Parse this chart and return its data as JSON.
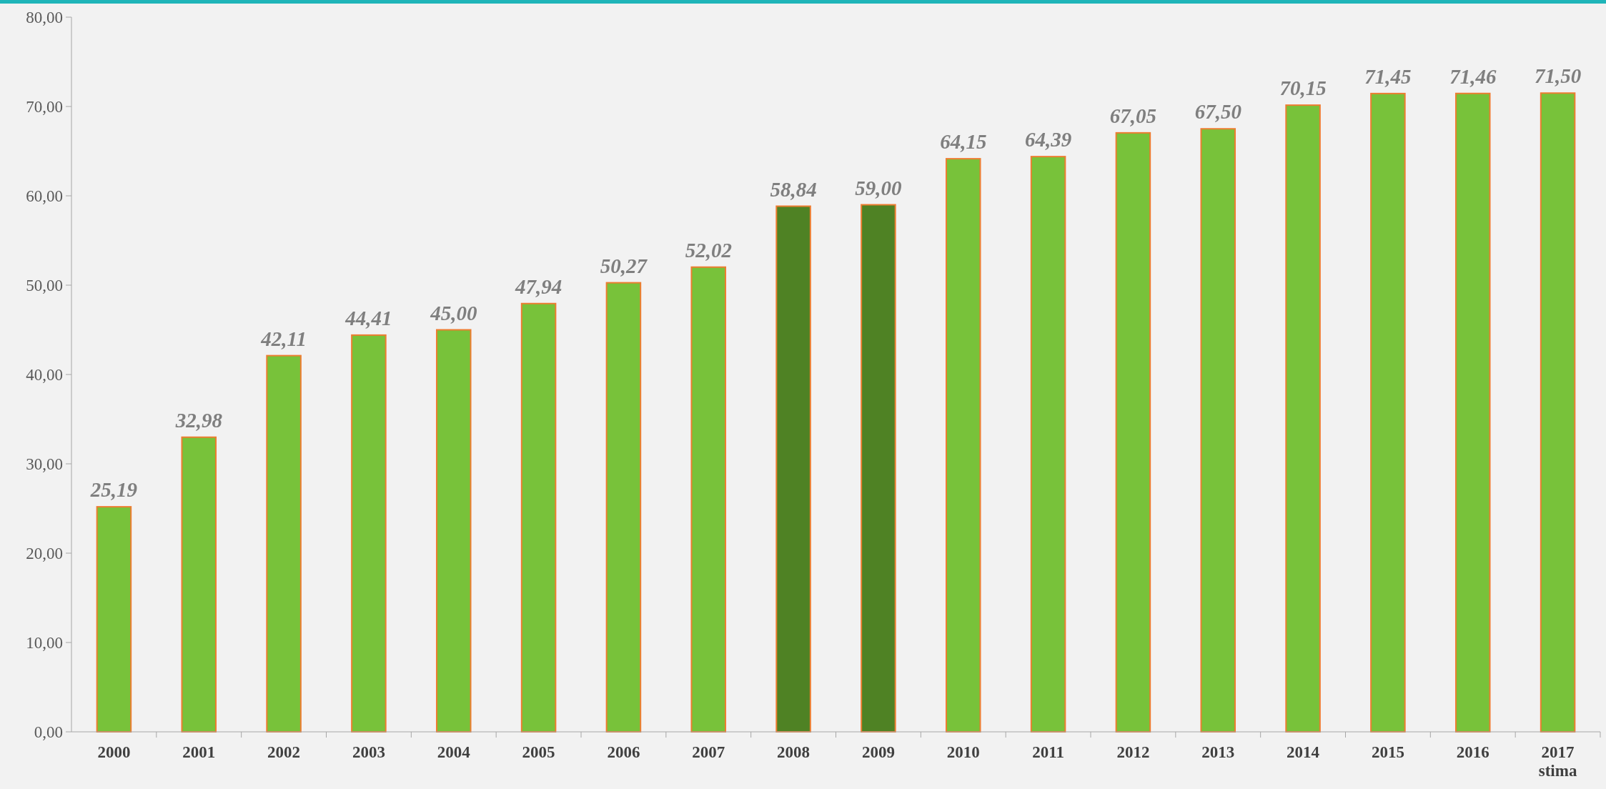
{
  "chart_data": {
    "type": "bar",
    "categories": [
      "2000",
      "2001",
      "2002",
      "2003",
      "2004",
      "2005",
      "2006",
      "2007",
      "2008",
      "2009",
      "2010",
      "2011",
      "2012",
      "2013",
      "2014",
      "2015",
      "2016",
      "2017\nstima"
    ],
    "values": [
      25.19,
      32.98,
      42.11,
      44.41,
      45.0,
      47.94,
      50.27,
      52.02,
      58.84,
      59.0,
      64.15,
      64.39,
      67.05,
      67.5,
      70.15,
      71.45,
      71.46,
      71.5
    ],
    "value_labels": [
      "25,19",
      "32,98",
      "42,11",
      "44,41",
      "45,00",
      "47,94",
      "50,27",
      "52,02",
      "58,84",
      "59,00",
      "64,15",
      "64,39",
      "67,05",
      "67,50",
      "70,15",
      "71,45",
      "71,46",
      "71,50"
    ],
    "colors": [
      "#78c23a",
      "#78c23a",
      "#78c23a",
      "#78c23a",
      "#78c23a",
      "#78c23a",
      "#78c23a",
      "#78c23a",
      "#4f8224",
      "#4f8224",
      "#78c23a",
      "#78c23a",
      "#78c23a",
      "#78c23a",
      "#78c23a",
      "#78c23a",
      "#78c23a",
      "#78c23a"
    ],
    "ylim": [
      0,
      80
    ],
    "yticks": [
      {
        "value": 0,
        "label": "0,00"
      },
      {
        "value": 10,
        "label": "10,00"
      },
      {
        "value": 20,
        "label": "20,00"
      },
      {
        "value": 30,
        "label": "30,00"
      },
      {
        "value": 40,
        "label": "40,00"
      },
      {
        "value": 50,
        "label": "50,00"
      },
      {
        "value": 60,
        "label": "60,00"
      },
      {
        "value": 70,
        "label": "70,00"
      },
      {
        "value": 80,
        "label": "80,00"
      }
    ],
    "grid": false
  }
}
